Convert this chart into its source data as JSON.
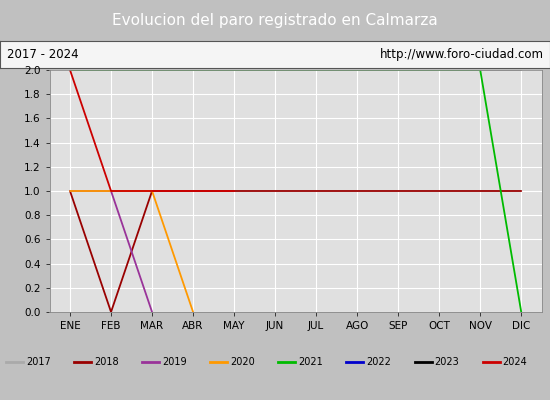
{
  "title": "Evolucion del paro registrado en Calmarza",
  "title_color": "#ffffff",
  "title_bg": "#5b8dd9",
  "subtitle_left": "2017 - 2024",
  "subtitle_right": "http://www.foro-ciudad.com",
  "months": [
    "ENE",
    "FEB",
    "MAR",
    "ABR",
    "MAY",
    "JUN",
    "JUL",
    "AGO",
    "SEP",
    "OCT",
    "NOV",
    "DIC"
  ],
  "ylim": [
    0,
    2.0
  ],
  "series": [
    {
      "year": "2017",
      "color": "#aaaaaa",
      "data": [
        2,
        2,
        2,
        2,
        2,
        2,
        2,
        2,
        2,
        2,
        2,
        2
      ]
    },
    {
      "year": "2018",
      "color": "#990000",
      "data": [
        1,
        0,
        1,
        1,
        1,
        1,
        1,
        1,
        1,
        1,
        1,
        1
      ]
    },
    {
      "year": "2019",
      "color": "#993399",
      "data": [
        1,
        1,
        0,
        null,
        null,
        null,
        null,
        null,
        null,
        null,
        null,
        null
      ]
    },
    {
      "year": "2020",
      "color": "#ff9900",
      "data": [
        1,
        1,
        1,
        0,
        null,
        null,
        null,
        null,
        null,
        null,
        null,
        null
      ]
    },
    {
      "year": "2021",
      "color": "#00bb00",
      "data": [
        2,
        2,
        2,
        2,
        2,
        2,
        2,
        2,
        2,
        2,
        2,
        0
      ]
    },
    {
      "year": "2022",
      "color": "#0000cc",
      "data": [
        0,
        null,
        null,
        null,
        null,
        null,
        null,
        null,
        null,
        null,
        null,
        null
      ]
    },
    {
      "year": "2023",
      "color": "#000000",
      "data": [
        0,
        null,
        null,
        null,
        null,
        null,
        null,
        null,
        null,
        null,
        null,
        null
      ]
    },
    {
      "year": "2024",
      "color": "#cc0000",
      "data": [
        2,
        1,
        1,
        1,
        1,
        null,
        null,
        null,
        null,
        null,
        null,
        null
      ]
    }
  ],
  "legend_bg": "#c8c8c8",
  "plot_bg": "#e0e0e0",
  "grid_color": "#ffffff",
  "fig_bg": "#c0c0c0"
}
